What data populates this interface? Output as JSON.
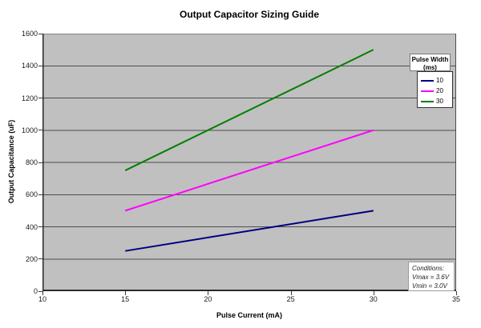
{
  "title": "Output Capacitor Sizing Guide",
  "chart_data": {
    "type": "line",
    "title": "Output Capacitor Sizing Guide",
    "xlabel": "Pulse Current (mA)",
    "ylabel": "Output Capacitance (uF)",
    "xlim": [
      10,
      35
    ],
    "ylim": [
      0,
      1600
    ],
    "x_ticks": [
      "10",
      "15",
      "20",
      "25",
      "30",
      "35"
    ],
    "y_ticks": [
      "0",
      "200",
      "400",
      "600",
      "800",
      "1000",
      "1200",
      "1400",
      "1600"
    ],
    "grid": "horizontal",
    "plot_background": "#c0c0c0",
    "gridline_color": "#4d4d4d",
    "axis_color": "#2a2a2a",
    "legend": {
      "title_line1": "Pulse Width",
      "title_line2": "(ms)",
      "position": "inside-top-right"
    },
    "series": [
      {
        "name": "10",
        "color": "#000080",
        "x": [
          15,
          30
        ],
        "y": [
          250,
          500
        ]
      },
      {
        "name": "20",
        "color": "#ff00ff",
        "x": [
          15,
          30
        ],
        "y": [
          500,
          1000
        ]
      },
      {
        "name": "30",
        "color": "#008000",
        "x": [
          15,
          30
        ],
        "y": [
          750,
          1500
        ]
      }
    ]
  },
  "annotation": {
    "lines": [
      "Conditions:",
      "Vmax = 3.6V",
      "Vmin = 3.0V"
    ]
  }
}
